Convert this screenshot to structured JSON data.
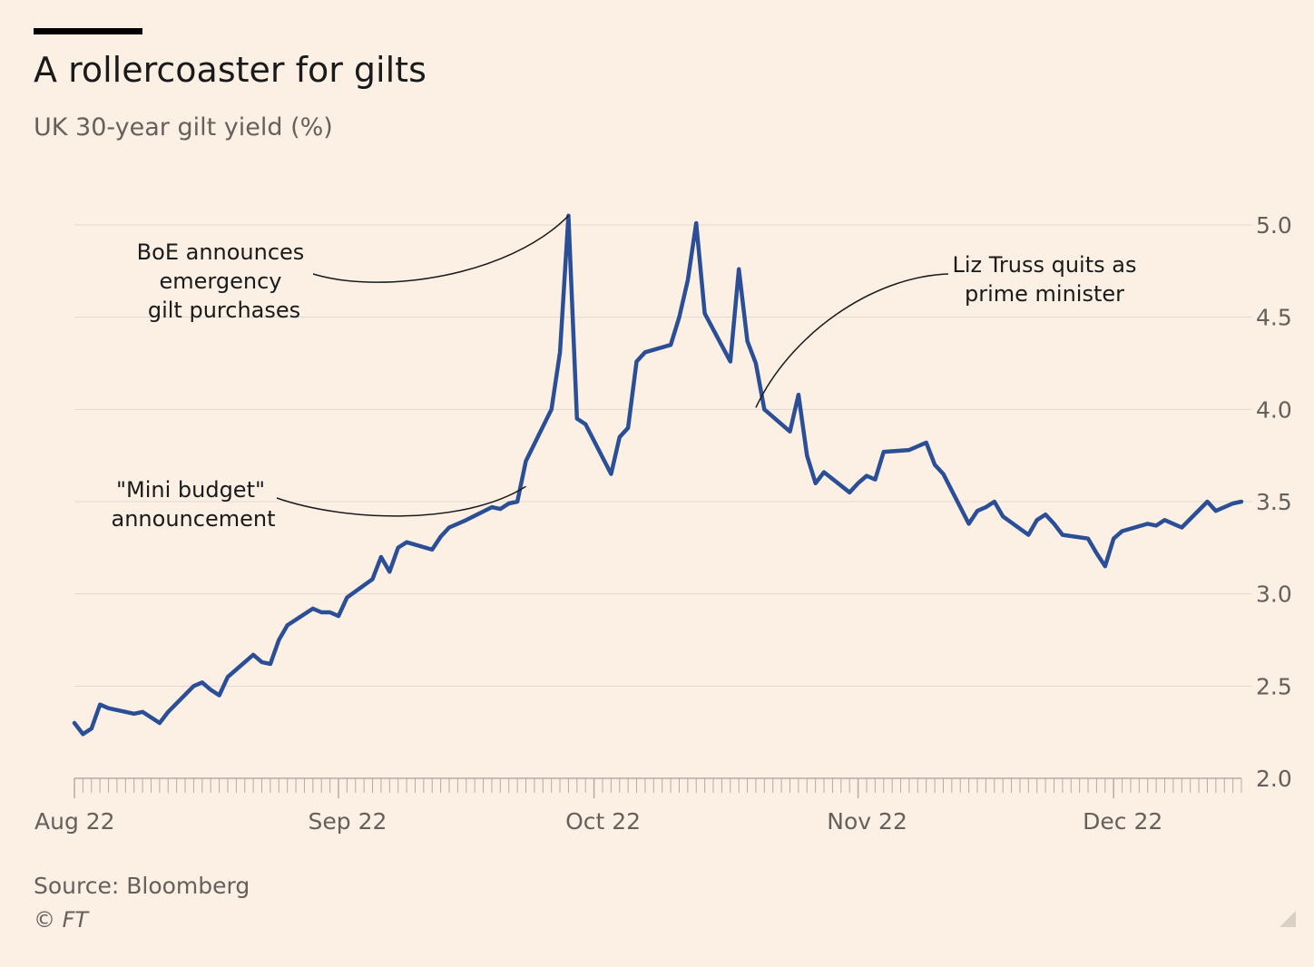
{
  "header": {
    "title": "A rollercoaster for gilts",
    "subtitle": "UK 30-year gilt yield (%)"
  },
  "footer": {
    "source": "Source: Bloomberg",
    "copyright": "© FT"
  },
  "colors": {
    "background": "#fcefe4",
    "line": "#2a4f96",
    "grid": "#e2d8cf",
    "text": "#33302e",
    "muted": "#66605c"
  },
  "chart_data": {
    "type": "line",
    "title": "A rollercoaster for gilts",
    "subtitle": "UK 30-year gilt yield (%)",
    "y_axis": {
      "ticks": [
        "2.0",
        "2.5",
        "3.0",
        "3.5",
        "4.0",
        "4.5",
        "5.0"
      ],
      "ylim": [
        2.0,
        5.0
      ],
      "position": "right"
    },
    "x_axis": {
      "labels": [
        "Aug 22",
        "Sep 22",
        "Oct 22",
        "Nov 22",
        "Dec 22"
      ],
      "xlim": [
        "2022-08-01",
        "2022-12-16"
      ]
    },
    "grid": true,
    "series": [
      {
        "values": [
          [
            "2022-08-01",
            2.3
          ],
          [
            "2022-08-02",
            2.24
          ],
          [
            "2022-08-03",
            2.27
          ],
          [
            "2022-08-04",
            2.4
          ],
          [
            "2022-08-05",
            2.38
          ],
          [
            "2022-08-08",
            2.35
          ],
          [
            "2022-08-09",
            2.36
          ],
          [
            "2022-08-10",
            2.33
          ],
          [
            "2022-08-11",
            2.3
          ],
          [
            "2022-08-12",
            2.36
          ],
          [
            "2022-08-15",
            2.5
          ],
          [
            "2022-08-16",
            2.52
          ],
          [
            "2022-08-17",
            2.48
          ],
          [
            "2022-08-18",
            2.45
          ],
          [
            "2022-08-19",
            2.55
          ],
          [
            "2022-08-22",
            2.67
          ],
          [
            "2022-08-23",
            2.63
          ],
          [
            "2022-08-24",
            2.62
          ],
          [
            "2022-08-25",
            2.75
          ],
          [
            "2022-08-26",
            2.83
          ],
          [
            "2022-08-29",
            2.92
          ],
          [
            "2022-08-30",
            2.9
          ],
          [
            "2022-08-31",
            2.9
          ],
          [
            "2022-09-01",
            2.88
          ],
          [
            "2022-09-02",
            2.98
          ],
          [
            "2022-09-05",
            3.08
          ],
          [
            "2022-09-06",
            3.2
          ],
          [
            "2022-09-07",
            3.12
          ],
          [
            "2022-09-08",
            3.25
          ],
          [
            "2022-09-09",
            3.28
          ],
          [
            "2022-09-12",
            3.24
          ],
          [
            "2022-09-13",
            3.31
          ],
          [
            "2022-09-14",
            3.36
          ],
          [
            "2022-09-15",
            3.38
          ],
          [
            "2022-09-16",
            3.4
          ],
          [
            "2022-09-19",
            3.47
          ],
          [
            "2022-09-20",
            3.46
          ],
          [
            "2022-09-21",
            3.49
          ],
          [
            "2022-09-22",
            3.5
          ],
          [
            "2022-09-23",
            3.72
          ],
          [
            "2022-09-26",
            4.0
          ],
          [
            "2022-09-27",
            4.31
          ],
          [
            "2022-09-28",
            5.05
          ],
          [
            "2022-09-29",
            3.95
          ],
          [
            "2022-09-30",
            3.92
          ],
          [
            "2022-10-03",
            3.65
          ],
          [
            "2022-10-04",
            3.85
          ],
          [
            "2022-10-05",
            3.9
          ],
          [
            "2022-10-06",
            4.26
          ],
          [
            "2022-10-07",
            4.31
          ],
          [
            "2022-10-10",
            4.35
          ],
          [
            "2022-10-11",
            4.5
          ],
          [
            "2022-10-12",
            4.7
          ],
          [
            "2022-10-13",
            5.01
          ],
          [
            "2022-10-14",
            4.52
          ],
          [
            "2022-10-17",
            4.26
          ],
          [
            "2022-10-18",
            4.76
          ],
          [
            "2022-10-19",
            4.37
          ],
          [
            "2022-10-20",
            4.25
          ],
          [
            "2022-10-21",
            4.0
          ],
          [
            "2022-10-24",
            3.88
          ],
          [
            "2022-10-25",
            4.08
          ],
          [
            "2022-10-26",
            3.75
          ],
          [
            "2022-10-27",
            3.6
          ],
          [
            "2022-10-28",
            3.66
          ],
          [
            "2022-10-31",
            3.55
          ],
          [
            "2022-11-01",
            3.6
          ],
          [
            "2022-11-02",
            3.64
          ],
          [
            "2022-11-03",
            3.62
          ],
          [
            "2022-11-04",
            3.77
          ],
          [
            "2022-11-07",
            3.78
          ],
          [
            "2022-11-08",
            3.8
          ],
          [
            "2022-11-09",
            3.82
          ],
          [
            "2022-11-10",
            3.7
          ],
          [
            "2022-11-11",
            3.65
          ],
          [
            "2022-11-14",
            3.38
          ],
          [
            "2022-11-15",
            3.45
          ],
          [
            "2022-11-16",
            3.47
          ],
          [
            "2022-11-17",
            3.5
          ],
          [
            "2022-11-18",
            3.42
          ],
          [
            "2022-11-21",
            3.32
          ],
          [
            "2022-11-22",
            3.4
          ],
          [
            "2022-11-23",
            3.43
          ],
          [
            "2022-11-24",
            3.38
          ],
          [
            "2022-11-25",
            3.32
          ],
          [
            "2022-11-28",
            3.3
          ],
          [
            "2022-11-29",
            3.22
          ],
          [
            "2022-11-30",
            3.15
          ],
          [
            "2022-12-01",
            3.3
          ],
          [
            "2022-12-02",
            3.34
          ],
          [
            "2022-12-05",
            3.38
          ],
          [
            "2022-12-06",
            3.37
          ],
          [
            "2022-12-07",
            3.4
          ],
          [
            "2022-12-08",
            3.38
          ],
          [
            "2022-12-09",
            3.36
          ],
          [
            "2022-12-12",
            3.5
          ],
          [
            "2022-12-13",
            3.45
          ],
          [
            "2022-12-14",
            3.47
          ],
          [
            "2022-12-15",
            3.49
          ],
          [
            "2022-12-16",
            3.5
          ]
        ]
      }
    ],
    "annotations": [
      {
        "lines": [
          "BoE announces",
          "emergency",
          "gilt purchases"
        ],
        "date": "2022-09-28",
        "value": 5.05
      },
      {
        "lines": [
          "\"Mini budget\"",
          "announcement"
        ],
        "date": "2022-09-23",
        "value": 3.72
      },
      {
        "lines": [
          "Liz Truss quits as",
          "prime minister"
        ],
        "date": "2022-10-20",
        "value": 4.0
      }
    ]
  }
}
